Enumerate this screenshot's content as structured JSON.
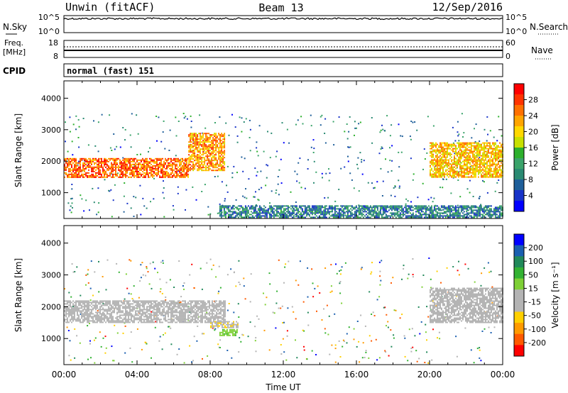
{
  "header": {
    "station": "Unwin (fitACF)",
    "beam": "Beam 13",
    "date": "12/Sep/2016"
  },
  "noise_panel": {
    "left_label": "N.Sky",
    "right_label": "N.Search",
    "left_ticks": [
      "10^5",
      "10^0"
    ],
    "right_ticks": [
      "10^5",
      "10^0"
    ]
  },
  "freq_panel": {
    "left_label_1": "Freq.",
    "left_label_2": "[MHz]",
    "right_label": "Nave",
    "left_ticks": [
      "18",
      "8"
    ],
    "right_ticks": [
      "60",
      "0"
    ]
  },
  "cpid_panel": {
    "label": "CPID",
    "value": "normal (fast) 151"
  },
  "power_colorbar": {
    "label": "Power [dB]",
    "ticks": [
      "28",
      "24",
      "20",
      "16",
      "12",
      "8",
      "4"
    ],
    "colors": [
      "#ff0000",
      "#ff3300",
      "#ff7000",
      "#ffa500",
      "#ffd800",
      "#c8e000",
      "#2db02d",
      "#3aa36a",
      "#2a8a72",
      "#1f5f9a",
      "#1733c8",
      "#0000ff"
    ]
  },
  "velocity_colorbar": {
    "label": "Velocity [m s⁻¹]",
    "ticks": [
      "200",
      "100",
      "50",
      "15",
      "-15",
      "-50",
      "-100",
      "-200"
    ],
    "colors": [
      "#0000ff",
      "#1a5fb0",
      "#21895a",
      "#33b233",
      "#7ed036",
      "#b4b4b4",
      "#b4b4b4",
      "#ffd000",
      "#ff9a00",
      "#ff5a00",
      "#ff0000"
    ]
  },
  "x_axis": {
    "label": "Time UT",
    "ticks": [
      "00:00",
      "04:00",
      "08:00",
      "12:00",
      "16:00",
      "20:00",
      "00:00"
    ]
  },
  "chart_data": [
    {
      "type": "heatmap",
      "title": "Power",
      "ylabel": "Slant Range [km]",
      "xlabel": "",
      "xlim": [
        0,
        24
      ],
      "ylim": [
        180,
        4550
      ],
      "y_ticks": [
        "1000",
        "2000",
        "3000",
        "4000"
      ],
      "colorbar_label": "Power [dB]",
      "colorbar_range": [
        0,
        30
      ],
      "features": [
        {
          "start_hour": 0.0,
          "end_hour": 6.8,
          "range_km": [
            1500,
            2100
          ],
          "value_db": 24
        },
        {
          "start_hour": 6.8,
          "end_hour": 8.8,
          "range_km": [
            1700,
            2900
          ],
          "value_db": 22
        },
        {
          "start_hour": 20.0,
          "end_hour": 24.0,
          "range_km": [
            1500,
            2600
          ],
          "value_db": 20
        },
        {
          "start_hour": 8.5,
          "end_hour": 24.0,
          "range_km": [
            200,
            600
          ],
          "value_db": 8
        }
      ]
    },
    {
      "type": "heatmap",
      "title": "Velocity",
      "ylabel": "Slant Range [km]",
      "xlabel": "Time UT",
      "xlim": [
        0,
        24
      ],
      "ylim": [
        180,
        4550
      ],
      "y_ticks": [
        "1000",
        "2000",
        "3000",
        "4000"
      ],
      "colorbar_label": "Velocity [m s⁻¹]",
      "colorbar_range": [
        -250,
        250
      ],
      "features": [
        {
          "start_hour": 0.0,
          "end_hour": 8.8,
          "range_km": [
            1500,
            2200
          ],
          "value_ms": 0
        },
        {
          "start_hour": 8.0,
          "end_hour": 9.5,
          "range_km": [
            1350,
            1550
          ],
          "value_ms": -60
        },
        {
          "start_hour": 8.5,
          "end_hour": 9.5,
          "range_km": [
            1100,
            1300
          ],
          "value_ms": 60
        },
        {
          "start_hour": 20.0,
          "end_hour": 24.0,
          "range_km": [
            1500,
            2600
          ],
          "value_ms": 0
        }
      ]
    }
  ]
}
